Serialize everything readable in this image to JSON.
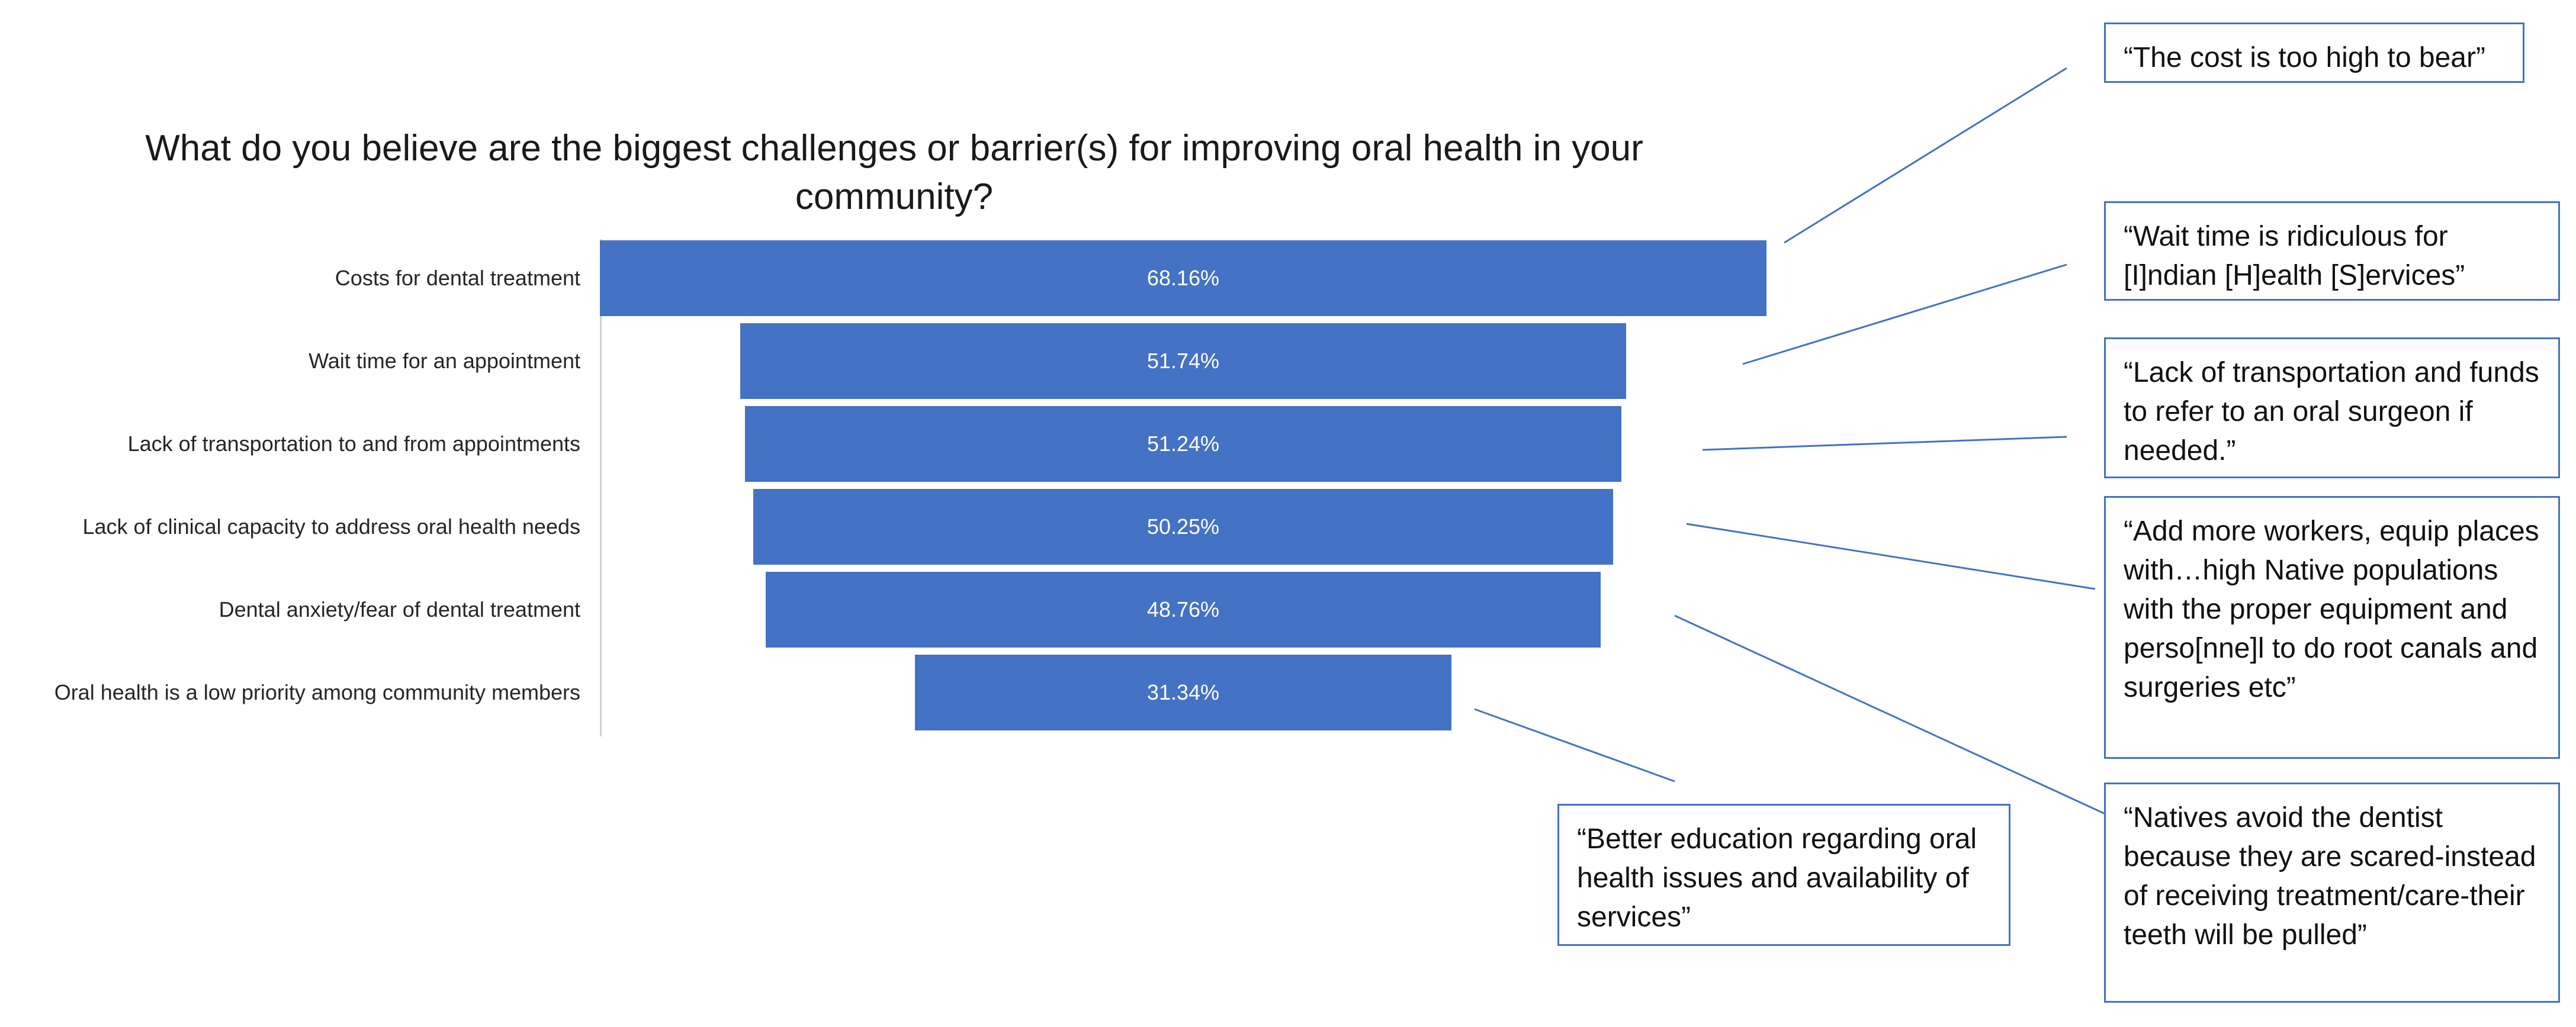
{
  "chart_data": {
    "type": "bar",
    "orientation": "horizontal-funnel",
    "title": "What do you believe are the biggest challenges or barrier(s) for improving oral health in your community?",
    "categories": [
      "Costs for dental treatment",
      "Wait time for an appointment",
      "Lack of transportation to and from appointments",
      "Lack of clinical capacity to address oral health needs",
      "Dental anxiety/fear of dental treatment",
      "Oral health is a low priority among community members"
    ],
    "values": [
      68.16,
      51.74,
      51.24,
      50.25,
      48.76,
      31.34
    ],
    "value_labels": [
      "68.16%",
      "51.74%",
      "51.24%",
      "50.25%",
      "48.76%",
      "31.34%"
    ],
    "bar_color": "#4472c4"
  },
  "quotes": [
    {
      "text": "“The cost is too high to bear”"
    },
    {
      "text": "“Wait time is ridiculous for [I]ndian [H]ealth [S]ervices”"
    },
    {
      "text": "“Lack of transportation and funds to refer to an oral surgeon if needed.”"
    },
    {
      "text": "“Add more workers, equip places with…high Native populations with the proper equipment and perso[nne]l to do root canals and surgeries etc”"
    },
    {
      "text": "“Natives avoid the dentist because they are scared-instead of receiving treatment/care-their teeth will be pulled”"
    },
    {
      "text": "“Better education regarding oral health issues and availability of services”"
    }
  ],
  "colors": {
    "accent": "#4472c4",
    "connector": "#4472c4"
  }
}
